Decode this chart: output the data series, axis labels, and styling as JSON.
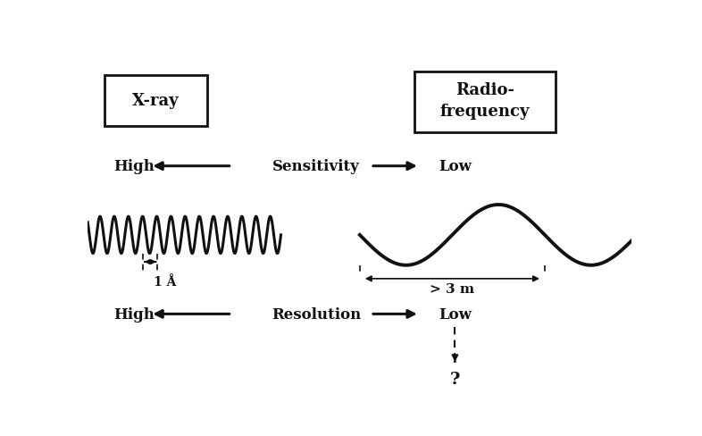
{
  "bg_color": "#ffffff",
  "text_color": "#111111",
  "xray_box_label": "X-ray",
  "radio_box_label": "Radio-\nfrequency",
  "sensitivity_label": "Sensitivity",
  "resolution_label": "Resolution",
  "high_label": "High",
  "low_label": "Low",
  "angstrom_label": "1 Å",
  "meter_label": "> 3 m",
  "question_mark": "?",
  "xray_wave_amplitude": 0.055,
  "xray_wave_frequency": 14,
  "radio_wave_amplitude": 0.09,
  "radio_wave_frequency": 1.5
}
